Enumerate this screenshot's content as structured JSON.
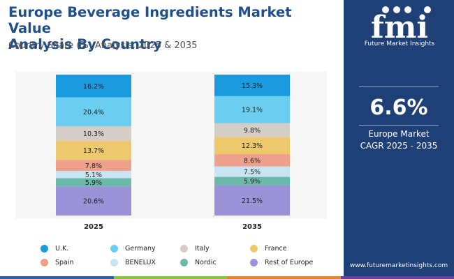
{
  "header": {
    "title_line1": "Europe Beverage Ingredients Market Value",
    "title_line2": "Analysis By Country",
    "subtitle": "Country Share (%) Analysis, 2025 & 2035"
  },
  "chart_data": {
    "type": "bar",
    "stacked": true,
    "orientation": "vertical",
    "grid": false,
    "legend_placement": "bottom",
    "categories": [
      "2025",
      "2035"
    ],
    "series": [
      {
        "name": "U.K.",
        "color": "#1a9be0",
        "values": [
          16.2,
          15.3
        ],
        "labels": [
          "16.2%",
          "15.3%"
        ]
      },
      {
        "name": "Germany",
        "color": "#6bcdf0",
        "values": [
          20.4,
          19.1
        ],
        "labels": [
          "20.4%",
          "19.1%"
        ]
      },
      {
        "name": "Italy",
        "color": "#d5cdc8",
        "values": [
          10.3,
          9.8
        ],
        "labels": [
          "10.3%",
          "9.8%"
        ]
      },
      {
        "name": "France",
        "color": "#eec86c",
        "values": [
          13.7,
          12.3
        ],
        "labels": [
          "13.7%",
          "12.3%"
        ]
      },
      {
        "name": "Spain",
        "color": "#eea08a",
        "values": [
          7.8,
          8.6
        ],
        "labels": [
          "7.8%",
          "8.6%"
        ]
      },
      {
        "name": "BENELUX",
        "color": "#c8e4f3",
        "values": [
          5.1,
          7.5
        ],
        "labels": [
          "5.1%",
          "7.5%"
        ]
      },
      {
        "name": "Nordic",
        "color": "#6cb9aa",
        "values": [
          5.9,
          5.9
        ],
        "labels": [
          "5.9%",
          "5.9%"
        ]
      },
      {
        "name": "Rest of Europe",
        "color": "#9b92d8",
        "values": [
          20.6,
          21.5
        ],
        "labels": [
          "20.6%",
          "21.5%"
        ]
      }
    ]
  },
  "side_panel": {
    "logo_text": "fmi",
    "logo_subtitle": "Future Market Insights",
    "cagr_value": "6.6%",
    "cagr_label_line1": "Europe Market",
    "cagr_label_line2": "CAGR 2025 - 2035",
    "website": "www.futuremarketinsights.com",
    "background_color": "#1f3f77"
  },
  "bottom_strip_colors": [
    "#2a5fa6",
    "#8ac53f",
    "#e4862e",
    "#6b3fa0"
  ]
}
